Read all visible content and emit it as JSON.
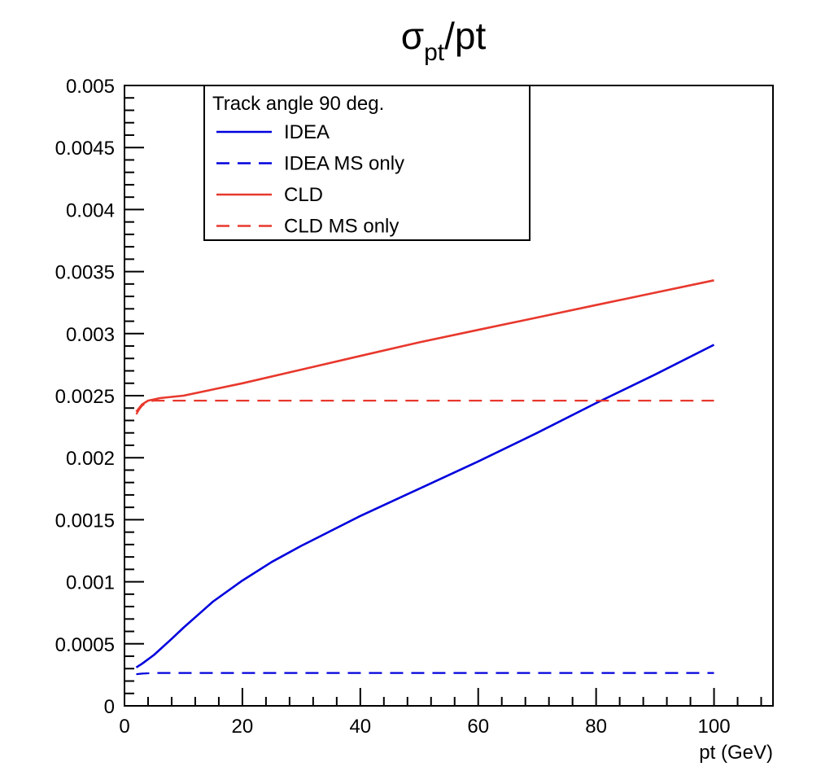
{
  "chart_data": {
    "type": "line",
    "title_main": "σ",
    "title_sub": "pt",
    "title_tail": "/pt",
    "xlabel": "pt (GeV)",
    "ylabel": "",
    "xlim": [
      0,
      110
    ],
    "ylim": [
      0,
      0.005
    ],
    "x_ticks": [
      0,
      20,
      40,
      60,
      80,
      100
    ],
    "x_tick_labels": [
      "0",
      "20",
      "40",
      "60",
      "80",
      "100"
    ],
    "y_ticks": [
      0,
      0.0005,
      0.001,
      0.0015,
      0.002,
      0.0025,
      0.003,
      0.0035,
      0.004,
      0.0045,
      0.005
    ],
    "y_tick_labels": [
      "0",
      "0.0005",
      "0.001",
      "0.0015",
      "0.002",
      "0.0025",
      "0.003",
      "0.0035",
      "0.004",
      "0.0045",
      "0.005"
    ],
    "legend": {
      "header": "Track angle 90 deg.",
      "position": "top-left"
    },
    "series": [
      {
        "name": "IDEA",
        "color": "#0000dd",
        "dash": "solid",
        "x": [
          2,
          3,
          5,
          8,
          10,
          15,
          20,
          25,
          30,
          40,
          50,
          60,
          70,
          80,
          90,
          100
        ],
        "y": [
          0.00031,
          0.00034,
          0.00041,
          0.00054,
          0.00063,
          0.00084,
          0.00101,
          0.00116,
          0.00129,
          0.00153,
          0.00175,
          0.00197,
          0.0022,
          0.00244,
          0.00267,
          0.00291
        ]
      },
      {
        "name": "IDEA MS only",
        "color": "#0000dd",
        "dash": "dashed",
        "x": [
          2,
          3,
          5,
          10,
          20,
          40,
          60,
          80,
          100
        ],
        "y": [
          0.000255,
          0.00026,
          0.000265,
          0.000265,
          0.000265,
          0.000265,
          0.000265,
          0.000265,
          0.000265
        ]
      },
      {
        "name": "CLD",
        "color": "#e8382d",
        "dash": "solid",
        "x": [
          2,
          2.5,
          3,
          4,
          5,
          6,
          8,
          10,
          15,
          20,
          30,
          40,
          50,
          60,
          70,
          80,
          90,
          100
        ],
        "y": [
          0.00237,
          0.0024,
          0.00243,
          0.00246,
          0.00247,
          0.00248,
          0.00249,
          0.0025,
          0.00255,
          0.0026,
          0.00271,
          0.00282,
          0.00293,
          0.00303,
          0.00313,
          0.00323,
          0.00333,
          0.00343
        ]
      },
      {
        "name": "CLD MS only",
        "color": "#e8382d",
        "dash": "dashed",
        "x": [
          2,
          2.5,
          3,
          4,
          5,
          10,
          20,
          40,
          60,
          80,
          100
        ],
        "y": [
          0.00235,
          0.00239,
          0.00242,
          0.00245,
          0.00246,
          0.00246,
          0.00246,
          0.00246,
          0.00246,
          0.00246,
          0.00246
        ]
      }
    ]
  }
}
